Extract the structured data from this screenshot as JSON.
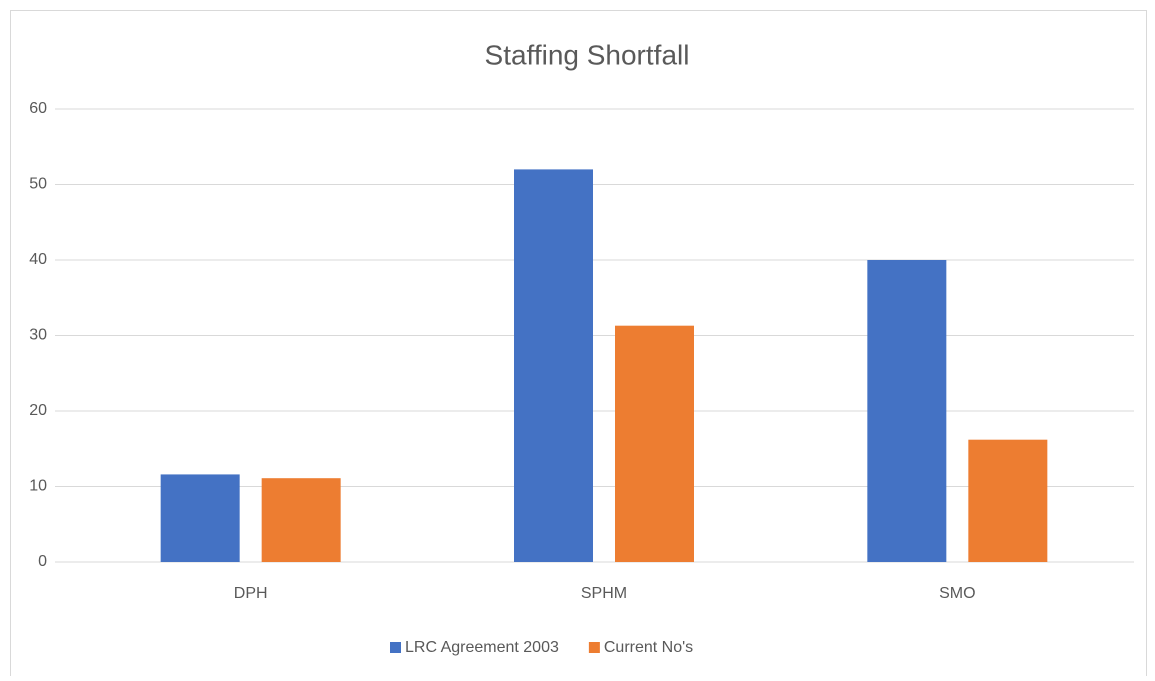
{
  "chart_data": {
    "type": "bar",
    "title": "Staffing Shortfall",
    "categories": [
      "DPH",
      "SPHM",
      "SMO"
    ],
    "series": [
      {
        "name": "LRC Agreement 2003",
        "color": "#4472c4",
        "values": [
          11.6,
          52,
          40
        ]
      },
      {
        "name": "Current No's",
        "color": "#ed7d31",
        "values": [
          11.1,
          31.3,
          16.2
        ]
      }
    ],
    "ylim": [
      0,
      60
    ],
    "yticks": [
      0,
      10,
      20,
      30,
      40,
      50,
      60
    ],
    "grid": true,
    "legend": "bottom"
  }
}
